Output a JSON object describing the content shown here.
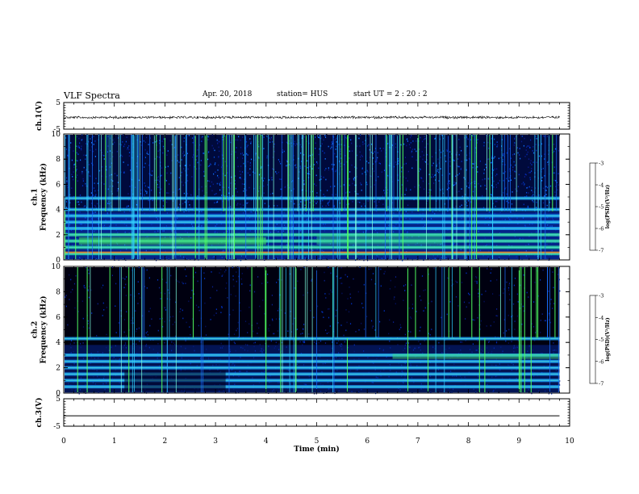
{
  "header": {
    "title": "VLF Spectra",
    "date": "Apr. 20, 2018",
    "station": "station= HUS",
    "start_ut": "start  UT =   2 : 20 : 2"
  },
  "colors": {
    "background": "#ffffff",
    "axis": "#000000",
    "spectrogram_floor": "#000010"
  },
  "chart_data": [
    {
      "type": "line",
      "panel": "ch1-waveform",
      "ylabel": "ch.1(V)",
      "yticks": [
        "5",
        "-5"
      ],
      "ylim": [
        -5,
        5
      ],
      "x": [
        0,
        9.8
      ],
      "values": [
        -0.6,
        -0.6
      ],
      "note_shape": "dense noisy trace near -0.6 V"
    },
    {
      "type": "heatmap",
      "panel": "ch1-spectrogram",
      "ylabel_line1": "ch.1",
      "ylabel_line2": "Frequency (kHz)",
      "yticks": [
        "0",
        "2",
        "4",
        "6",
        "8",
        "10"
      ],
      "ylim": [
        0,
        10
      ],
      "xlim": [
        0,
        9.8
      ],
      "horizontal_bands_khz": [
        0.5,
        1.0,
        1.5,
        2.0,
        2.5,
        3.0,
        3.5,
        4.0,
        4.9
      ],
      "colorbar": {
        "label": "log(PSD)(V²/Hz)",
        "ticks": [
          "-3",
          "-4",
          "-5",
          "-6",
          "-7"
        ],
        "range": [
          -7,
          -3
        ]
      }
    },
    {
      "type": "heatmap",
      "panel": "ch2-spectrogram",
      "ylabel_line1": "ch.2",
      "ylabel_line2": "Frequency (kHz)",
      "yticks": [
        "0",
        "2",
        "4",
        "6",
        "8",
        "10"
      ],
      "ylim": [
        0,
        10
      ],
      "xlim": [
        0,
        9.8
      ],
      "horizontal_bands_khz": [
        0.5,
        1.0,
        1.5,
        2.0,
        2.5,
        3.0,
        4.3
      ],
      "colorbar": {
        "label": "log(PSD)(V²/Hz)",
        "ticks": [
          "-3",
          "-4",
          "-5",
          "-6",
          "-7"
        ],
        "range": [
          -7,
          -3
        ]
      }
    },
    {
      "type": "line",
      "panel": "ch3-waveform",
      "ylabel": "ch.3(V)",
      "yticks": [
        "5",
        "-5"
      ],
      "ylim": [
        -5,
        5
      ],
      "x": [
        0,
        9.8
      ],
      "values": [
        -1.2,
        -1.2
      ]
    }
  ],
  "xaxis": {
    "label": "Time (min)",
    "ticks": [
      "0",
      "1",
      "2",
      "3",
      "4",
      "5",
      "6",
      "7",
      "8",
      "9",
      "10"
    ],
    "xlim": [
      0,
      10
    ]
  }
}
